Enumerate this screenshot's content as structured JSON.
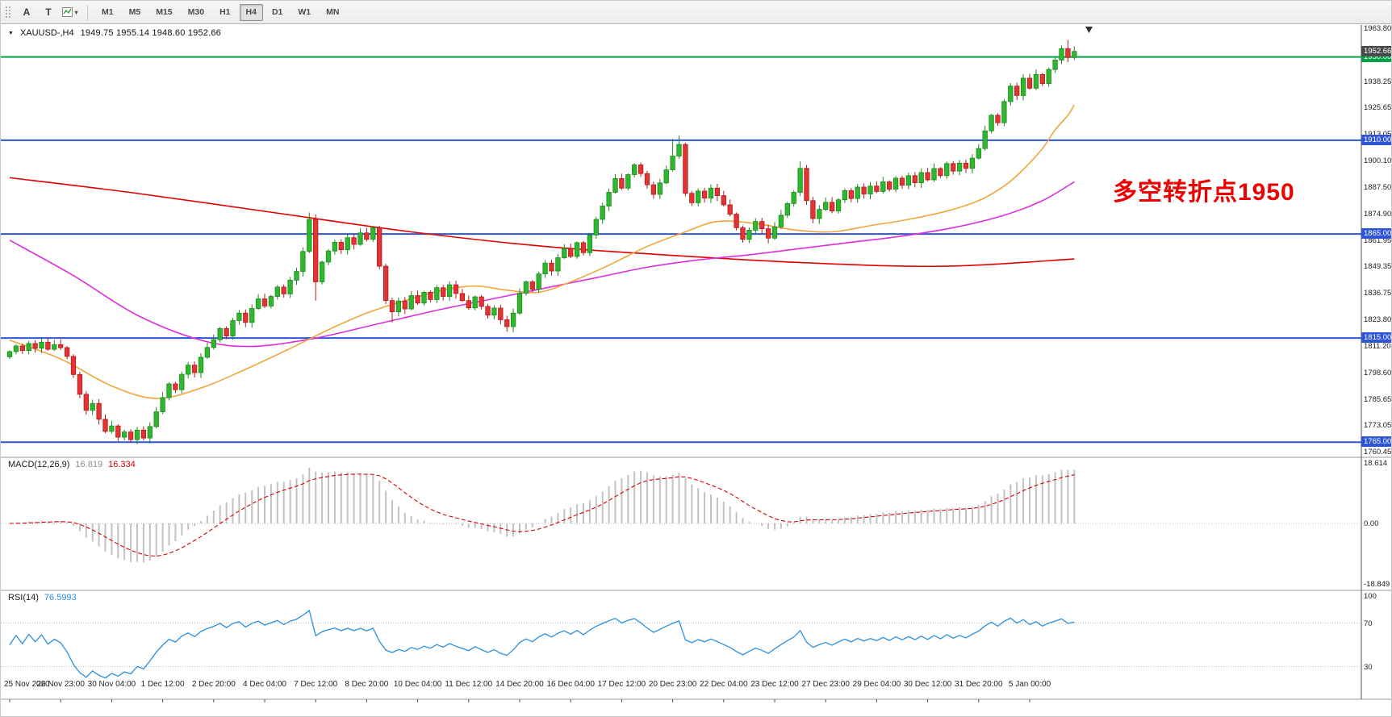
{
  "icons": {
    "caret": "▾",
    "symbol_triangle": "▼"
  },
  "toolbar": {
    "tools": [
      "A",
      "T"
    ],
    "timeframes": [
      "M1",
      "M5",
      "M15",
      "M30",
      "H1",
      "H4",
      "D1",
      "W1",
      "MN"
    ],
    "selected_timeframe": "H4"
  },
  "chart": {
    "symbol_title": "XAUUSD-,H4",
    "ohlc_text": "1949.75 1955.14 1948.60 1952.66",
    "annotation": {
      "text": "多空转折点1950",
      "color": "#ee0000"
    },
    "price_axis_labels": [
      "1963.80",
      "1938.25",
      "1925.65",
      "1913.05",
      "1900.10",
      "1887.50",
      "1874.90",
      "1861.95",
      "1849.35",
      "1836.75",
      "1823.80",
      "1811.20",
      "1798.60",
      "1785.65",
      "1773.05",
      "1760.45"
    ],
    "levels": [
      {
        "price": 1950.0,
        "label": "1950.00",
        "color": "#00a344"
      },
      {
        "price": 1910.0,
        "label": "1910.00",
        "color": "#2e55d8"
      },
      {
        "price": 1865.0,
        "label": "1865.00",
        "color": "#2e55d8"
      },
      {
        "price": 1815.0,
        "label": "1815.00",
        "color": "#2e55d8"
      },
      {
        "price": 1765.0,
        "label": "1765.00",
        "color": "#2e55d8"
      }
    ],
    "current_price": {
      "label": "1952.66",
      "value": 1952.66,
      "box_color": "#4a4a4a"
    },
    "time_axis": [
      "25 Nov 2020",
      "26 Nov 23:00",
      "30 Nov 04:00",
      "1 Dec 12:00",
      "2 Dec 20:00",
      "4 Dec 04:00",
      "7 Dec 12:00",
      "8 Dec 20:00",
      "10 Dec 04:00",
      "11 Dec 12:00",
      "14 Dec 20:00",
      "16 Dec 04:00",
      "17 Dec 12:00",
      "20 Dec 23:00",
      "22 Dec 04:00",
      "23 Dec 12:00",
      "27 Dec 23:00",
      "29 Dec 04:00",
      "30 Dec 12:00",
      "31 Dec 20:00",
      "5 Jan 00:00"
    ]
  },
  "chart_data": {
    "type": "candlestick",
    "symbol": "XAUUSD",
    "timeframe": "H4",
    "ohlc_last_bar": {
      "open": 1949.75,
      "high": 1955.14,
      "low": 1948.6,
      "close": 1952.66
    },
    "price_range": {
      "top": 1963.8,
      "bottom": 1760.45
    },
    "first_open": 1806.0,
    "closes": [
      1808.5,
      1811.2,
      1809.0,
      1812.4,
      1810.1,
      1813.0,
      1809.6,
      1811.8,
      1810.4,
      1806.2,
      1797.5,
      1788.0,
      1780.3,
      1783.6,
      1776.0,
      1770.2,
      1772.8,
      1767.4,
      1769.9,
      1766.2,
      1770.8,
      1767.0,
      1772.5,
      1779.6,
      1786.4,
      1793.0,
      1790.2,
      1797.6,
      1802.0,
      1798.4,
      1805.8,
      1810.5,
      1814.2,
      1819.6,
      1816.0,
      1823.4,
      1827.0,
      1822.5,
      1829.2,
      1833.8,
      1830.4,
      1835.0,
      1839.5,
      1836.2,
      1842.8,
      1847.0,
      1856.6,
      1872.0,
      1842.0,
      1851.5,
      1856.8,
      1861.0,
      1857.4,
      1863.2,
      1860.0,
      1865.5,
      1862.4,
      1868.0,
      1849.5,
      1833.0,
      1827.6,
      1832.8,
      1829.0,
      1835.4,
      1831.8,
      1837.0,
      1833.5,
      1839.2,
      1835.0,
      1840.6,
      1836.4,
      1833.0,
      1829.5,
      1834.8,
      1830.2,
      1826.0,
      1829.4,
      1823.8,
      1820.5,
      1827.0,
      1836.5,
      1842.0,
      1838.4,
      1845.8,
      1851.0,
      1847.2,
      1853.6,
      1858.0,
      1854.2,
      1860.8,
      1856.0,
      1864.5,
      1872.0,
      1878.4,
      1885.0,
      1891.6,
      1887.0,
      1893.5,
      1898.2,
      1894.0,
      1888.6,
      1884.0,
      1889.5,
      1895.8,
      1902.4,
      1908.0,
      1884.5,
      1880.0,
      1885.6,
      1882.2,
      1887.0,
      1883.4,
      1879.0,
      1874.5,
      1868.0,
      1862.4,
      1866.8,
      1871.0,
      1867.5,
      1863.0,
      1868.4,
      1874.0,
      1879.6,
      1885.0,
      1896.5,
      1881.0,
      1872.4,
      1876.8,
      1880.2,
      1876.0,
      1881.4,
      1885.8,
      1882.0,
      1887.5,
      1884.2,
      1888.0,
      1885.4,
      1890.0,
      1886.5,
      1891.8,
      1888.4,
      1893.0,
      1889.6,
      1894.5,
      1891.0,
      1896.4,
      1893.0,
      1898.8,
      1895.2,
      1899.0,
      1896.5,
      1901.4,
      1906.0,
      1914.5,
      1922.0,
      1918.4,
      1928.6,
      1936.0,
      1931.5,
      1939.8,
      1935.0,
      1941.6,
      1937.2,
      1944.0,
      1948.5,
      1954.0,
      1949.75,
      1952.66
    ],
    "wick_overrides": {
      "17": {
        "l": 1765.4
      },
      "19": {
        "l": 1764.9
      },
      "21": {
        "l": 1765.8
      },
      "47": {
        "h": 1875.3
      },
      "48": {
        "l": 1833.0
      },
      "60": {
        "l": 1822.5
      },
      "79": {
        "l": 1817.8
      },
      "104": {
        "h": 1910.6
      },
      "105": {
        "h": 1912.4
      },
      "124": {
        "h": 1899.8
      },
      "166": {
        "h": 1958.2
      },
      "167": {
        "h": 1955.14,
        "l": 1948.6
      }
    },
    "moving_averages": [
      {
        "name": "ma-slow",
        "color": "#e00000",
        "points": [
          [
            0,
            1892
          ],
          [
            20,
            1884.5
          ],
          [
            42,
            1875
          ],
          [
            63,
            1866
          ],
          [
            84,
            1859
          ],
          [
            105,
            1854.5
          ],
          [
            126,
            1851
          ],
          [
            147,
            1849.5
          ],
          [
            167,
            1853
          ]
        ]
      },
      {
        "name": "ma-mid",
        "color": "#dd2edd",
        "points": [
          [
            0,
            1862
          ],
          [
            10,
            1845
          ],
          [
            20,
            1826
          ],
          [
            30,
            1814
          ],
          [
            38,
            1811
          ],
          [
            48,
            1815
          ],
          [
            58,
            1822
          ],
          [
            68,
            1829
          ],
          [
            76,
            1834
          ],
          [
            84,
            1839
          ],
          [
            92,
            1844
          ],
          [
            100,
            1849
          ],
          [
            108,
            1852.5
          ],
          [
            116,
            1855
          ],
          [
            124,
            1858
          ],
          [
            132,
            1861
          ],
          [
            140,
            1864
          ],
          [
            148,
            1868
          ],
          [
            156,
            1874
          ],
          [
            162,
            1881
          ],
          [
            167,
            1890
          ]
        ]
      },
      {
        "name": "ma-fast",
        "color": "#efa63a",
        "points": [
          [
            0,
            1814
          ],
          [
            8,
            1805
          ],
          [
            16,
            1792
          ],
          [
            23,
            1786
          ],
          [
            30,
            1791
          ],
          [
            37,
            1800
          ],
          [
            44,
            1810
          ],
          [
            50,
            1819
          ],
          [
            56,
            1827
          ],
          [
            62,
            1833
          ],
          [
            68,
            1838
          ],
          [
            73,
            1840
          ],
          [
            78,
            1838
          ],
          [
            83,
            1837
          ],
          [
            88,
            1842
          ],
          [
            94,
            1850
          ],
          [
            100,
            1859
          ],
          [
            106,
            1866
          ],
          [
            111,
            1871
          ],
          [
            117,
            1870
          ],
          [
            123,
            1867
          ],
          [
            129,
            1866
          ],
          [
            135,
            1869
          ],
          [
            141,
            1872
          ],
          [
            147,
            1876
          ],
          [
            152,
            1881
          ],
          [
            156,
            1888
          ],
          [
            159,
            1896
          ],
          [
            162,
            1906
          ],
          [
            164,
            1915
          ],
          [
            166,
            1922
          ],
          [
            167,
            1927
          ]
        ]
      }
    ],
    "indicators": {
      "macd": {
        "label": "MACD(12,26,9)",
        "main": "16.819",
        "signal": "16.334",
        "params": [
          12,
          26,
          9
        ],
        "axis": [
          "18.614",
          "0.00",
          "-18.849"
        ],
        "range": [
          -18.849,
          18.614
        ]
      },
      "rsi": {
        "label": "RSI(14)",
        "value": "76.5993",
        "period": 14,
        "axis": [
          "100",
          "70",
          "30"
        ],
        "levels": [
          70,
          30
        ],
        "range": [
          0,
          100
        ]
      }
    }
  },
  "colors": {
    "up": "#2eb82e",
    "up_stroke": "#1e8a1e",
    "down": "#e43333",
    "down_stroke": "#b01c1c",
    "macd_hist": "#c2c2c2",
    "macd_signal": "#d40000",
    "rsi_line": "#2a8fdd",
    "axis_line": "#555555",
    "separator": "#9a9a9a",
    "grid_dotted": "#bbbbbb"
  }
}
